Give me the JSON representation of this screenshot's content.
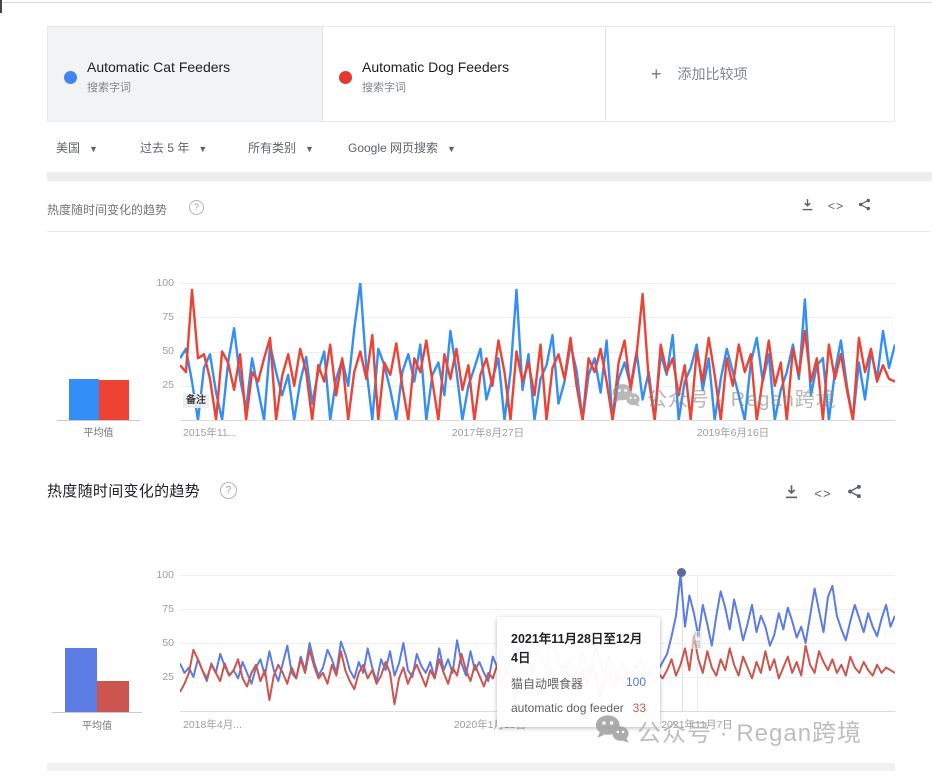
{
  "terms": [
    {
      "label": "Automatic Cat Feeders",
      "sublabel": "搜索字词",
      "color": "#4285f4"
    },
    {
      "label": "Automatic Dog Feeders",
      "sublabel": "搜索字词",
      "color": "#e4392f"
    }
  ],
  "add_comparison": {
    "plus": "+",
    "label": "添加比较项"
  },
  "filters": [
    {
      "label": "美国"
    },
    {
      "label": "过去 5 年"
    },
    {
      "label": "所有类别"
    },
    {
      "label": "Google 网页搜索"
    }
  ],
  "watermark": {
    "text": "公众号 · Regan跨境"
  },
  "chart_data": [
    {
      "type": "line",
      "title": "热度随时间变化的趋势",
      "help": "?",
      "ylim": [
        0,
        100
      ],
      "yticks": [
        "100",
        "75",
        "50",
        "25"
      ],
      "xticks": [
        "2015年11...",
        "2017年8月27日",
        "2019年6月16日"
      ],
      "note_marker": "备注",
      "avg_label": "平均值",
      "averages": {
        "blue": 30,
        "red": 29
      },
      "colors": {
        "blue": "#338ef5",
        "red": "#ec4335"
      },
      "stroke": 2.4,
      "series": [
        {
          "name": "Automatic Cat Feeders",
          "color": "#338ef5",
          "values": [
            45,
            52,
            28,
            0,
            38,
            48,
            20,
            0,
            42,
            67,
            30,
            8,
            45,
            22,
            0,
            55,
            35,
            18,
            33,
            0,
            28,
            46,
            12,
            35,
            50,
            0,
            30,
            44,
            25,
            66,
            100,
            38,
            0,
            52,
            40,
            22,
            0,
            35,
            48,
            28,
            55,
            0,
            33,
            42,
            18,
            65,
            36,
            0,
            25,
            38,
            52,
            15,
            30,
            45,
            0,
            35,
            95,
            22,
            48,
            0,
            30,
            40,
            62,
            12,
            28,
            55,
            36,
            0,
            33,
            45,
            20,
            58,
            0,
            30,
            42,
            25,
            50,
            15,
            35,
            0,
            48,
            33,
            62,
            0,
            28,
            38,
            55,
            22,
            45,
            0,
            30,
            52,
            35,
            18,
            0,
            42,
            60,
            28,
            48,
            0,
            22,
            35,
            55,
            30,
            88,
            18,
            40,
            45,
            0,
            35,
            58,
            25,
            0,
            42,
            15,
            50,
            30,
            65,
            38,
            55
          ]
        },
        {
          "name": "Automatic Dog Feeders",
          "color": "#ec4335",
          "values": [
            40,
            35,
            95,
            45,
            48,
            30,
            0,
            50,
            42,
            22,
            48,
            0,
            35,
            28,
            45,
            60,
            0,
            32,
            48,
            25,
            52,
            35,
            0,
            40,
            28,
            55,
            18,
            45,
            0,
            35,
            50,
            30,
            62,
            0,
            42,
            33,
            56,
            25,
            0,
            45,
            35,
            58,
            28,
            0,
            48,
            30,
            52,
            22,
            40,
            0,
            33,
            45,
            25,
            58,
            35,
            0,
            50,
            28,
            42,
            18,
            55,
            0,
            38,
            48,
            30,
            60,
            25,
            0,
            45,
            35,
            52,
            28,
            0,
            42,
            58,
            22,
            48,
            92,
            30,
            0,
            55,
            35,
            45,
            18,
            40,
            0,
            50,
            28,
            60,
            33,
            0,
            45,
            25,
            55,
            35,
            48,
            0,
            30,
            58,
            25,
            42,
            0,
            52,
            33,
            65,
            28,
            45,
            0,
            55,
            30,
            48,
            22,
            0,
            60,
            35,
            52,
            28,
            40,
            30,
            28
          ]
        }
      ]
    },
    {
      "type": "line",
      "title": "热度随时间变化的趋势",
      "help": "?",
      "ylim": [
        0,
        100
      ],
      "yticks": [
        "100",
        "75",
        "50",
        "25"
      ],
      "xticks": [
        "2018年4月...",
        "2020年1月19日",
        "2021年11月7日"
      ],
      "avg_label": "平均值",
      "averages": {
        "blue": 47,
        "red": 23
      },
      "colors": {
        "blue": "#5d7ce3",
        "red": "#cc564f"
      },
      "stroke": 2,
      "annotation_fragment": "州猫",
      "tooltip": {
        "date": "2021年11月28日至12月4日",
        "rows": [
          {
            "label": "猫自动喂食器",
            "value": "100",
            "color": "#4b74e8"
          },
          {
            "label": "automatic dog feeder",
            "value": "33",
            "color": "#cd5750"
          }
        ]
      },
      "series": [
        {
          "name": "猫自动喂食器",
          "color": "#5d7ce3",
          "values": [
            35,
            28,
            32,
            25,
            38,
            30,
            22,
            35,
            28,
            42,
            33,
            26,
            30,
            24,
            36,
            28,
            20,
            32,
            38,
            26,
            44,
            30,
            22,
            35,
            48,
            28,
            24,
            40,
            30,
            50,
            36,
            26,
            32,
            45,
            38,
            28,
            51,
            42,
            30,
            24,
            36,
            28,
            46,
            32,
            22,
            38,
            30,
            44,
            26,
            35,
            50,
            30,
            25,
            42,
            33,
            28,
            36,
            24,
            46,
            30,
            38,
            28,
            52,
            35,
            26,
            44,
            30,
            36,
            28,
            22,
            40,
            32,
            48,
            26,
            38,
            30,
            24,
            44,
            34,
            28,
            50,
            38,
            30,
            54,
            46,
            34,
            28,
            38,
            24,
            32,
            44,
            30,
            26,
            48,
            36,
            28,
            40,
            30,
            22,
            36,
            28,
            28,
            32,
            38,
            30,
            26,
            34,
            30,
            36,
            42,
            55,
            70,
            100,
            62,
            85,
            72,
            55,
            78,
            64,
            48,
            70,
            88,
            76,
            60,
            82,
            68,
            52,
            64,
            78,
            58,
            70,
            62,
            48,
            56,
            72,
            60,
            76,
            66,
            54,
            62,
            50,
            70,
            90,
            74,
            58,
            84,
            92,
            70,
            60,
            52,
            66,
            78,
            68,
            58,
            72,
            62,
            55,
            68,
            78,
            62,
            70
          ]
        },
        {
          "name": "automatic dog feeder",
          "color": "#cc564f",
          "values": [
            14,
            20,
            28,
            45,
            38,
            30,
            24,
            34,
            28,
            22,
            35,
            26,
            30,
            38,
            24,
            18,
            28,
            34,
            22,
            30,
            8,
            26,
            34,
            28,
            20,
            32,
            24,
            38,
            28,
            45,
            33,
            24,
            28,
            20,
            34,
            26,
            44,
            30,
            22,
            16,
            28,
            34,
            24,
            30,
            20,
            26,
            36,
            28,
            5,
            24,
            32,
            20,
            28,
            34,
            26,
            18,
            30,
            24,
            38,
            28,
            20,
            32,
            26,
            42,
            30,
            22,
            34,
            26,
            18,
            28,
            24,
            34,
            20,
            30,
            26,
            8,
            22,
            30,
            24,
            34,
            28,
            18,
            26,
            32,
            22,
            28,
            34,
            24,
            16,
            26,
            30,
            20,
            34,
            28,
            10,
            24,
            30,
            18,
            26,
            22,
            30,
            26,
            34,
            28,
            24,
            30,
            22,
            28,
            24,
            30,
            38,
            26,
            34,
            46,
            30,
            55,
            38,
            28,
            44,
            32,
            26,
            38,
            30,
            46,
            34,
            26,
            40,
            32,
            24,
            36,
            28,
            44,
            30,
            38,
            24,
            32,
            40,
            28,
            36,
            26,
            48,
            34,
            28,
            44,
            36,
            30,
            38,
            28,
            34,
            26,
            40,
            32,
            28,
            36,
            30,
            26,
            34,
            28,
            32,
            30,
            28
          ]
        }
      ]
    }
  ]
}
